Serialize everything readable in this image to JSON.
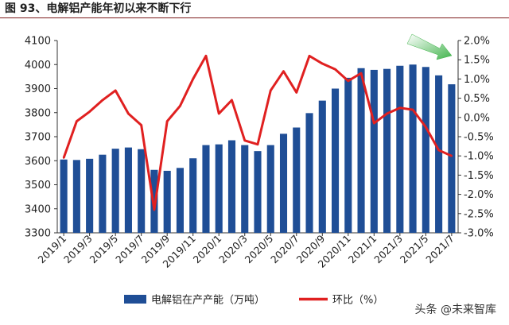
{
  "header": {
    "title": "图 93、电解铝产能年初以来不断下行"
  },
  "watermark": {
    "text": "头条 @未来智库"
  },
  "colors": {
    "bar": "#1f4e96",
    "line": "#e02020",
    "arrow": "#3fb34a",
    "title_rule": "#7d1c1c"
  },
  "chart_data": {
    "type": "bar",
    "title": "",
    "xlabel": "",
    "ylabel": "",
    "categories": [
      "2019/1",
      "2019/2",
      "2019/3",
      "2019/4",
      "2019/5",
      "2019/6",
      "2019/7",
      "2019/8",
      "2019/9",
      "2019/10",
      "2019/11",
      "2019/12",
      "2020/1",
      "2020/2",
      "2020/3",
      "2020/4",
      "2020/5",
      "2020/6",
      "2020/7",
      "2020/8",
      "2020/9",
      "2020/10",
      "2020/11",
      "2020/12",
      "2021/1",
      "2021/2",
      "2021/3",
      "2021/4",
      "2021/5",
      "2021/6",
      "2021/7"
    ],
    "x_tick_labels": [
      "2019/1",
      "2019/3",
      "2019/5",
      "2019/7",
      "2019/9",
      "2019/11",
      "2020/1",
      "2020/3",
      "2020/5",
      "2020/7",
      "2020/9",
      "2020/11",
      "2021/1",
      "2021/3",
      "2021/5",
      "2021/7"
    ],
    "series": [
      {
        "name": "电解铝在产产能（万吨）",
        "type": "bar",
        "axis": "left",
        "values": [
          3605,
          3603,
          3608,
          3625,
          3650,
          3655,
          3648,
          3562,
          3558,
          3570,
          3610,
          3665,
          3668,
          3685,
          3665,
          3640,
          3665,
          3712,
          3738,
          3798,
          3850,
          3900,
          3945,
          3985,
          3978,
          3982,
          3995,
          4000,
          3990,
          3955,
          3918
        ]
      },
      {
        "name": "环比（%）",
        "type": "line",
        "axis": "right",
        "values": [
          -1.05,
          -0.1,
          0.15,
          0.45,
          0.7,
          0.1,
          -0.2,
          -2.4,
          -0.1,
          0.3,
          1.0,
          1.6,
          0.1,
          0.45,
          -0.6,
          -0.7,
          0.7,
          1.2,
          0.65,
          1.6,
          1.4,
          1.25,
          0.95,
          1.15,
          -0.15,
          0.1,
          0.25,
          0.2,
          -0.25,
          -0.85,
          -1.0
        ]
      }
    ],
    "y_left": {
      "min": 3300,
      "max": 4100,
      "step": 100,
      "tick_labels": [
        "3300",
        "3400",
        "3500",
        "3600",
        "3700",
        "3800",
        "3900",
        "4000",
        "4100"
      ]
    },
    "y_right": {
      "min": -3.0,
      "max": 2.0,
      "step": 0.5,
      "tick_labels": [
        "-3.0%",
        "-2.5%",
        "-2.0%",
        "-1.5%",
        "-1.0%",
        "-0.5%",
        "0.0%",
        "0.5%",
        "1.0%",
        "1.5%",
        "2.0%"
      ]
    },
    "legend": {
      "placement": "bottom"
    },
    "annotation": {
      "type": "arrow",
      "direction": "down-right",
      "placement": "top-right"
    },
    "grid": false
  }
}
